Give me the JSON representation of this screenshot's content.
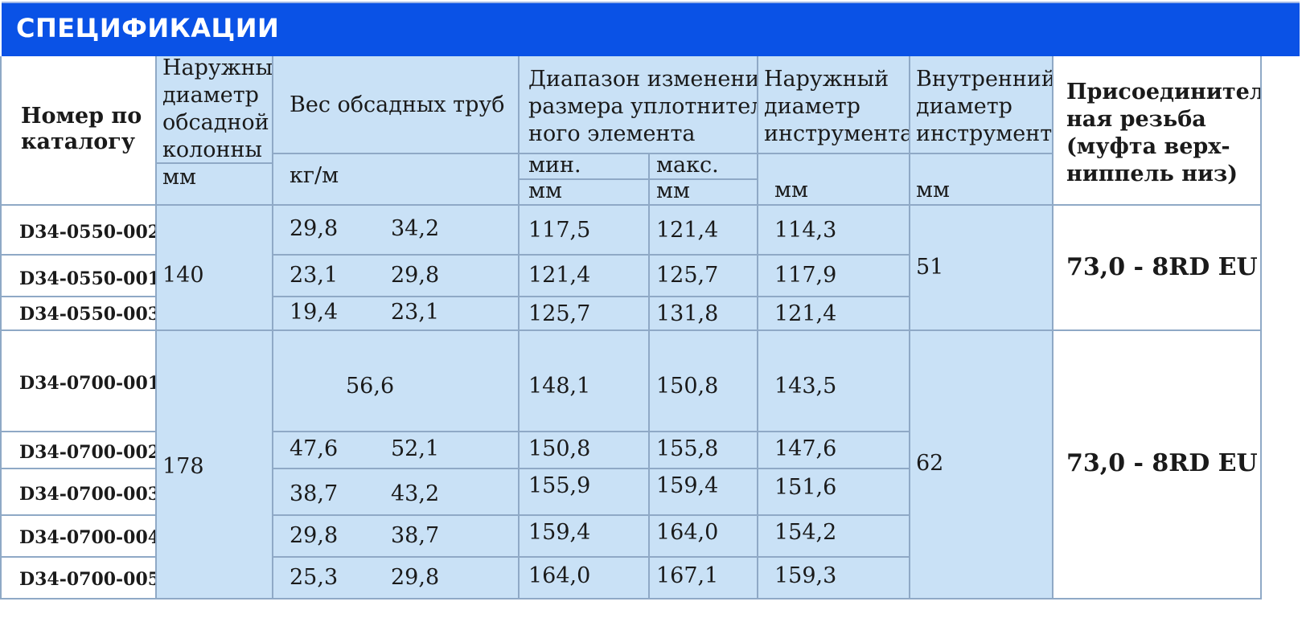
{
  "title": "СПЕЦИФИКАЦИИ",
  "headers": {
    "catalog": [
      "Номер по",
      "каталогу"
    ],
    "outer_casing": [
      "Наружный",
      "диаметр",
      "обсадной",
      "колонны"
    ],
    "outer_casing_unit": "мм",
    "casing_weight": "Вес обсадных труб",
    "casing_weight_unit": "кг/м",
    "seal_range": [
      "Диапазон изменения",
      "размера уплотнитель",
      "ного элемента"
    ],
    "seal_min": "мин.",
    "seal_max": "макс.",
    "seal_min_unit": "мм",
    "seal_max_unit": "мм",
    "tool_outer": [
      "Наружный",
      "диаметр",
      "инструмента"
    ],
    "tool_outer_unit": "мм",
    "tool_inner": [
      "Внутренний",
      "диаметр",
      "инструмента"
    ],
    "tool_inner_unit": "мм",
    "thread": [
      "Присоединитель",
      "ная резьба",
      "(муфта верх-",
      "ниппель низ)"
    ]
  },
  "groups": [
    {
      "casing_od": "140",
      "tool_id": "51",
      "thread": "73,0 - 8RD EU",
      "rows": [
        {
          "catalog": "D34-0550-002",
          "w1": "29,8",
          "w2": "34,2",
          "min": "117,5",
          "max": "121,4",
          "od": "114,3"
        },
        {
          "catalog": "D34-0550-001",
          "w1": "23,1",
          "w2": "29,8",
          "min": "121,4",
          "max": "125,7",
          "od": "117,9"
        },
        {
          "catalog": "D34-0550-003",
          "w1": "19,4",
          "w2": "23,1",
          "min": "125,7",
          "max": "131,8",
          "od": "121,4"
        }
      ]
    },
    {
      "casing_od": "178",
      "tool_id": "62",
      "thread": "73,0 - 8RD EU",
      "rows": [
        {
          "catalog": "D34-0700-001",
          "w_single": "56,6",
          "min": "148,1",
          "max": "150,8",
          "od": "143,5"
        },
        {
          "catalog": "D34-0700-002",
          "w1": "47,6",
          "w2": "52,1",
          "min": "150,8",
          "max": "155,8",
          "od": "147,6"
        },
        {
          "catalog": "D34-0700-003",
          "w1": "38,7",
          "w2": "43,2",
          "min": "155,9",
          "max": "159,4",
          "od": "151,6"
        },
        {
          "catalog": "D34-0700-004",
          "w1": "29,8",
          "w2": "38,7",
          "min": "159,4",
          "max": "164,0",
          "od": "154,2"
        },
        {
          "catalog": "D34-0700-005",
          "w1": "25,3",
          "w2": "29,8",
          "min": "164,0",
          "max": "167,1",
          "od": "159,3"
        }
      ]
    }
  ]
}
